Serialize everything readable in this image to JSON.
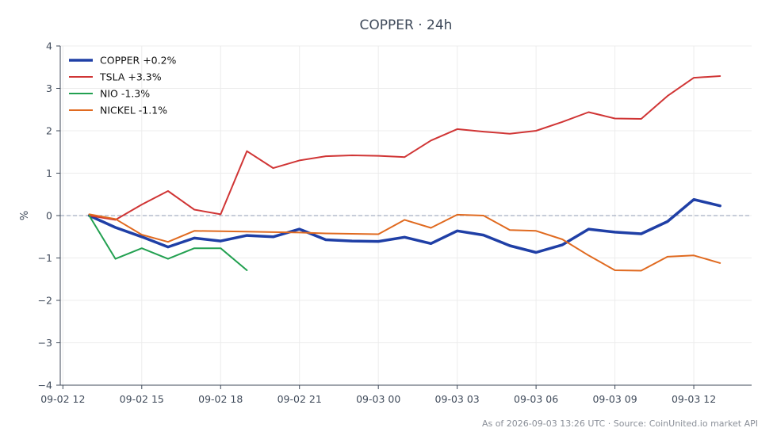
{
  "chart_data": {
    "type": "line",
    "title": "COPPER · 24h",
    "ylabel": "%",
    "xlabel": "",
    "ylim": [
      -4,
      4
    ],
    "xlim": [
      11.9,
      38.2
    ],
    "yticks": [
      -4,
      -3,
      -2,
      -1,
      0,
      1,
      2,
      3,
      4
    ],
    "ytick_labels": [
      "−4",
      "−3",
      "−2",
      "−1",
      "0",
      "1",
      "2",
      "3",
      "4"
    ],
    "xticks": [
      12,
      15,
      18,
      21,
      24,
      27,
      30,
      33,
      36
    ],
    "xtick_labels": [
      "09-02 12",
      "09-02 15",
      "09-02 18",
      "09-02 21",
      "09-03 00",
      "09-03 03",
      "09-03 06",
      "09-03 09",
      "09-03 12"
    ],
    "x_unit": "hours from 09-02 00:00",
    "grid": true,
    "zero_line": true,
    "legend_position": "top-left",
    "series": [
      {
        "name": "COPPER +0.2%",
        "color": "#1f3fa6",
        "width": 3.5,
        "x": [
          13,
          14,
          15,
          16,
          17,
          18,
          19,
          20,
          21,
          22,
          23,
          24,
          25,
          26,
          27,
          28,
          29,
          30,
          31,
          32,
          33,
          34,
          35,
          36,
          37
        ],
        "values": [
          0.0,
          -0.28,
          -0.5,
          -0.74,
          -0.53,
          -0.6,
          -0.47,
          -0.5,
          -0.32,
          -0.57,
          -0.6,
          -0.61,
          -0.51,
          -0.66,
          -0.36,
          -0.46,
          -0.71,
          -0.87,
          -0.69,
          -0.32,
          -0.39,
          -0.43,
          -0.14,
          0.38,
          0.23
        ]
      },
      {
        "name": "TSLA +3.3%",
        "color": "#d03535",
        "width": 2,
        "x": [
          13,
          14,
          15,
          16,
          17,
          18,
          19,
          20,
          21,
          22,
          23,
          24,
          25,
          26,
          27,
          28,
          29,
          30,
          31,
          32,
          33,
          34,
          35,
          36,
          37
        ],
        "values": [
          0.0,
          -0.1,
          0.26,
          0.58,
          0.14,
          0.03,
          1.52,
          1.12,
          1.3,
          1.4,
          1.42,
          1.41,
          1.38,
          1.77,
          2.04,
          1.98,
          1.93,
          2.0,
          2.21,
          2.44,
          2.29,
          2.28,
          2.82,
          3.25,
          3.29
        ]
      },
      {
        "name": "NIO -1.3%",
        "color": "#22a050",
        "width": 2,
        "x": [
          13,
          14,
          15,
          16,
          17,
          18,
          19
        ],
        "values": [
          0.0,
          -1.02,
          -0.77,
          -1.02,
          -0.77,
          -0.77,
          -1.29
        ]
      },
      {
        "name": "NICKEL -1.1%",
        "color": "#e06a20",
        "width": 2,
        "x": [
          13,
          14,
          15,
          16,
          17,
          18,
          19,
          20,
          21,
          22,
          23,
          24,
          25,
          26,
          27,
          28,
          29,
          30,
          31,
          32,
          33,
          34,
          35,
          36,
          37
        ],
        "values": [
          0.03,
          -0.08,
          -0.45,
          -0.62,
          -0.36,
          -0.37,
          -0.38,
          -0.39,
          -0.4,
          -0.42,
          -0.43,
          -0.44,
          -0.1,
          -0.29,
          0.02,
          0.0,
          -0.34,
          -0.36,
          -0.56,
          -0.94,
          -1.29,
          -1.3,
          -0.97,
          -0.94,
          -1.12
        ]
      }
    ]
  },
  "footer": "As of 2026-09-03 13:26 UTC · Source: CoinUnited.io market API"
}
